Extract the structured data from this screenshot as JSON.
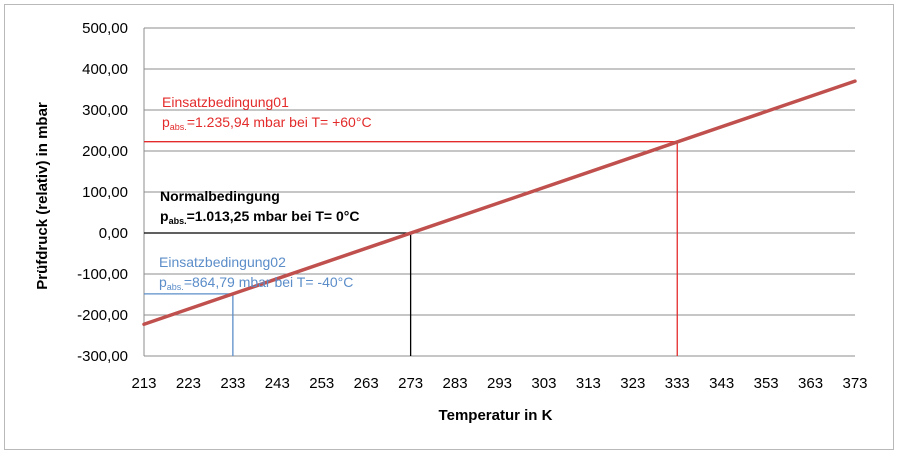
{
  "chart_data": {
    "type": "line",
    "title": "",
    "xlabel": "Temperatur  in K",
    "ylabel": "Prüfdruck  (relativ)  in mbar",
    "xlim": [
      213,
      373
    ],
    "ylim": [
      -300,
      500
    ],
    "x_ticks": [
      "213",
      "223",
      "233",
      "243",
      "253",
      "263",
      "273",
      "283",
      "293",
      "303",
      "313",
      "323",
      "333",
      "343",
      "353",
      "363",
      "373"
    ],
    "y_ticks": [
      "500,00",
      "400,00",
      "300,00",
      "200,00",
      "100,00",
      "0,00",
      "-100,00",
      "-200,00",
      "-300,00"
    ],
    "grid": true,
    "series": [
      {
        "color": "#c0504d",
        "x": [
          213,
          373
        ],
        "y": [
          -222.6,
          370.4
        ]
      }
    ],
    "annotations": [
      {
        "id": "einsatz01",
        "title": "Einsatzbedingung01",
        "prefix": "p",
        "subscript": "abs.",
        "value_text": "=1.235,94 mbar bei T= +60°C",
        "x": 333,
        "y": 222.7,
        "color": "#e32b2b"
      },
      {
        "id": "normal",
        "title": "Normalbedingung",
        "prefix": "p",
        "subscript": "abs.",
        "value_text": "=1.013,25 mbar bei T= 0°C",
        "x": 273,
        "y": 0,
        "color": "#000000"
      },
      {
        "id": "einsatz02",
        "title": "Einsatzbedingung02",
        "prefix": "p",
        "subscript": "abs.",
        "value_text": "=864,79 mbar bei T= -40°C",
        "x": 233,
        "y": -148.5,
        "color": "#5b8dc9"
      }
    ]
  }
}
